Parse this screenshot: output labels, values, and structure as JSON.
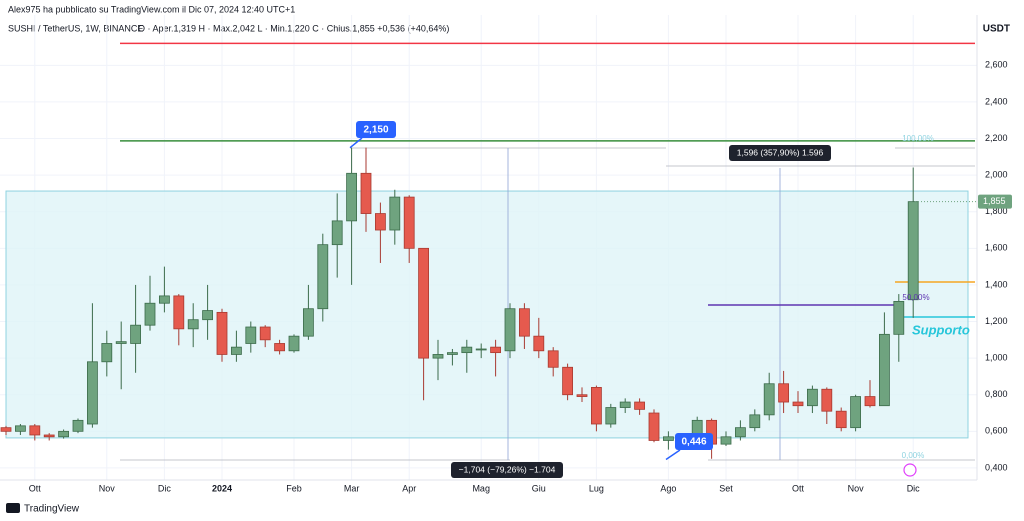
{
  "chart_data": {
    "type": "candlestick",
    "author_line": "Alex975 ha pubblicato su TradingView.com il Dic 07, 2024 12:40 UTC+1",
    "symbol": "SUSHI / TetherUS, 1W, BINANCE",
    "ohlc_line": "O · Aper.1,319  H · Max.2,042  L · Min.1,220  C · Chius.1,855  +0,536 (+40,64%)",
    "currency": "USDT",
    "footer": "TradingView",
    "categories": [
      null,
      null,
      "Ott",
      null,
      null,
      null,
      null,
      "Nov",
      null,
      null,
      null,
      "Dic",
      null,
      null,
      null,
      "2024",
      null,
      null,
      null,
      null,
      "Feb",
      null,
      null,
      null,
      "Mar",
      null,
      null,
      null,
      "Apr",
      null,
      null,
      null,
      null,
      "Mag",
      null,
      null,
      null,
      "Giu",
      null,
      null,
      null,
      "Lug",
      null,
      null,
      null,
      null,
      "Ago",
      null,
      null,
      null,
      "Set",
      null,
      null,
      null,
      null,
      "Ott",
      null,
      null,
      null,
      "Nov",
      null,
      null,
      null,
      "Dic"
    ],
    "open": [
      0.62,
      0.6,
      0.63,
      0.58,
      0.57,
      0.6,
      0.64,
      0.98,
      1.08,
      1.08,
      1.18,
      1.3,
      1.34,
      1.16,
      1.21,
      1.25,
      1.02,
      1.08,
      1.17,
      1.08,
      1.04,
      1.12,
      1.27,
      1.62,
      1.75,
      2.01,
      1.79,
      1.7,
      1.88,
      1.6,
      1.0,
      1.02,
      1.03,
      1.05,
      1.06,
      1.04,
      1.27,
      1.12,
      1.04,
      0.95,
      0.8,
      0.84,
      0.64,
      0.73,
      0.76,
      0.7,
      0.55,
      0.57,
      0.55,
      0.66,
      0.53,
      0.57,
      0.62,
      0.69,
      0.86,
      0.76,
      0.74,
      0.83,
      0.71,
      0.62,
      0.79,
      0.74,
      1.13,
      1.319
    ],
    "high": [
      0.63,
      0.64,
      0.64,
      0.59,
      0.61,
      0.67,
      1.3,
      1.15,
      1.2,
      1.4,
      1.45,
      1.5,
      1.35,
      1.3,
      1.4,
      1.27,
      1.15,
      1.2,
      1.18,
      1.1,
      1.13,
      1.4,
      1.68,
      1.9,
      2.15,
      2.15,
      1.85,
      1.92,
      1.89,
      1.6,
      1.1,
      1.05,
      1.1,
      1.08,
      1.1,
      1.3,
      1.3,
      1.22,
      1.06,
      0.97,
      0.84,
      0.85,
      0.75,
      0.78,
      0.78,
      0.72,
      0.6,
      0.59,
      0.68,
      0.67,
      0.6,
      0.66,
      0.72,
      0.92,
      0.93,
      0.82,
      0.85,
      0.84,
      0.73,
      0.8,
      0.88,
      1.25,
      1.35,
      2.042
    ],
    "low": [
      0.58,
      0.58,
      0.55,
      0.55,
      0.56,
      0.59,
      0.62,
      0.9,
      0.83,
      0.92,
      1.15,
      1.25,
      1.07,
      1.06,
      1.1,
      0.98,
      0.98,
      1.03,
      1.06,
      1.02,
      1.03,
      1.1,
      1.2,
      1.44,
      1.4,
      1.69,
      1.52,
      1.62,
      1.52,
      0.77,
      0.88,
      0.96,
      0.92,
      1.0,
      0.9,
      1.0,
      1.05,
      1.0,
      0.9,
      0.77,
      0.76,
      0.6,
      0.62,
      0.7,
      0.69,
      0.54,
      0.5,
      0.53,
      0.53,
      0.45,
      0.52,
      0.55,
      0.6,
      0.66,
      0.7,
      0.7,
      0.7,
      0.64,
      0.6,
      0.6,
      0.73,
      0.74,
      0.98,
      1.22
    ],
    "close": [
      0.6,
      0.63,
      0.58,
      0.57,
      0.6,
      0.66,
      0.98,
      1.08,
      1.09,
      1.18,
      1.3,
      1.34,
      1.16,
      1.21,
      1.26,
      1.02,
      1.06,
      1.17,
      1.1,
      1.04,
      1.12,
      1.27,
      1.62,
      1.75,
      2.01,
      1.79,
      1.7,
      1.88,
      1.6,
      1.0,
      1.02,
      1.03,
      1.06,
      1.05,
      1.03,
      1.27,
      1.12,
      1.04,
      0.95,
      0.8,
      0.79,
      0.64,
      0.73,
      0.76,
      0.72,
      0.55,
      0.57,
      0.56,
      0.66,
      0.53,
      0.57,
      0.62,
      0.69,
      0.86,
      0.76,
      0.74,
      0.83,
      0.71,
      0.62,
      0.79,
      0.74,
      1.13,
      1.31,
      1.855
    ],
    "up_color": "#6fa37f",
    "down_color": "#e55a4e",
    "ylim": [
      0.334,
      2.875
    ],
    "yticks": [
      {
        "value": 0.4,
        "label": "0,400"
      },
      {
        "value": 0.6,
        "label": "0,600"
      },
      {
        "value": 0.8,
        "label": "0,800"
      },
      {
        "value": 1.0,
        "label": "1,000"
      },
      {
        "value": 1.2,
        "label": "1,200"
      },
      {
        "value": 1.4,
        "label": "1,400"
      },
      {
        "value": 1.6,
        "label": "1,600"
      },
      {
        "value": 1.8,
        "label": "1,800"
      },
      {
        "value": 2.0,
        "label": "2,000"
      },
      {
        "value": 2.2,
        "label": "2,200"
      },
      {
        "value": 2.4,
        "label": "2,400"
      },
      {
        "value": 2.6,
        "label": "2,600"
      }
    ],
    "grid": true,
    "hlines": [
      {
        "value": 2.72,
        "color": "#f23645"
      },
      {
        "value": 2.187,
        "color": "#388e3c"
      },
      {
        "value": 1.29,
        "color": "#5e35b1"
      },
      {
        "value": 1.416,
        "color": "#f5a623"
      },
      {
        "value": 1.225,
        "color": "#26c6da"
      }
    ],
    "zone": {
      "top": 1.913,
      "bottom": 0.564,
      "color": "#dff4f8"
    },
    "callouts": [
      {
        "label": "2,150",
        "value": 2.15
      },
      {
        "label": "0,446",
        "value": 0.446
      }
    ],
    "measures": [
      "1,596 (357,90%) 1.596",
      "−1,704 (−79,26%) −1.704"
    ],
    "fib_labels": [
      "100,00%",
      "50,00%",
      "0,00%"
    ],
    "support_label": "Supporto",
    "last_price": {
      "value": 1.855,
      "label": "1,855"
    }
  }
}
